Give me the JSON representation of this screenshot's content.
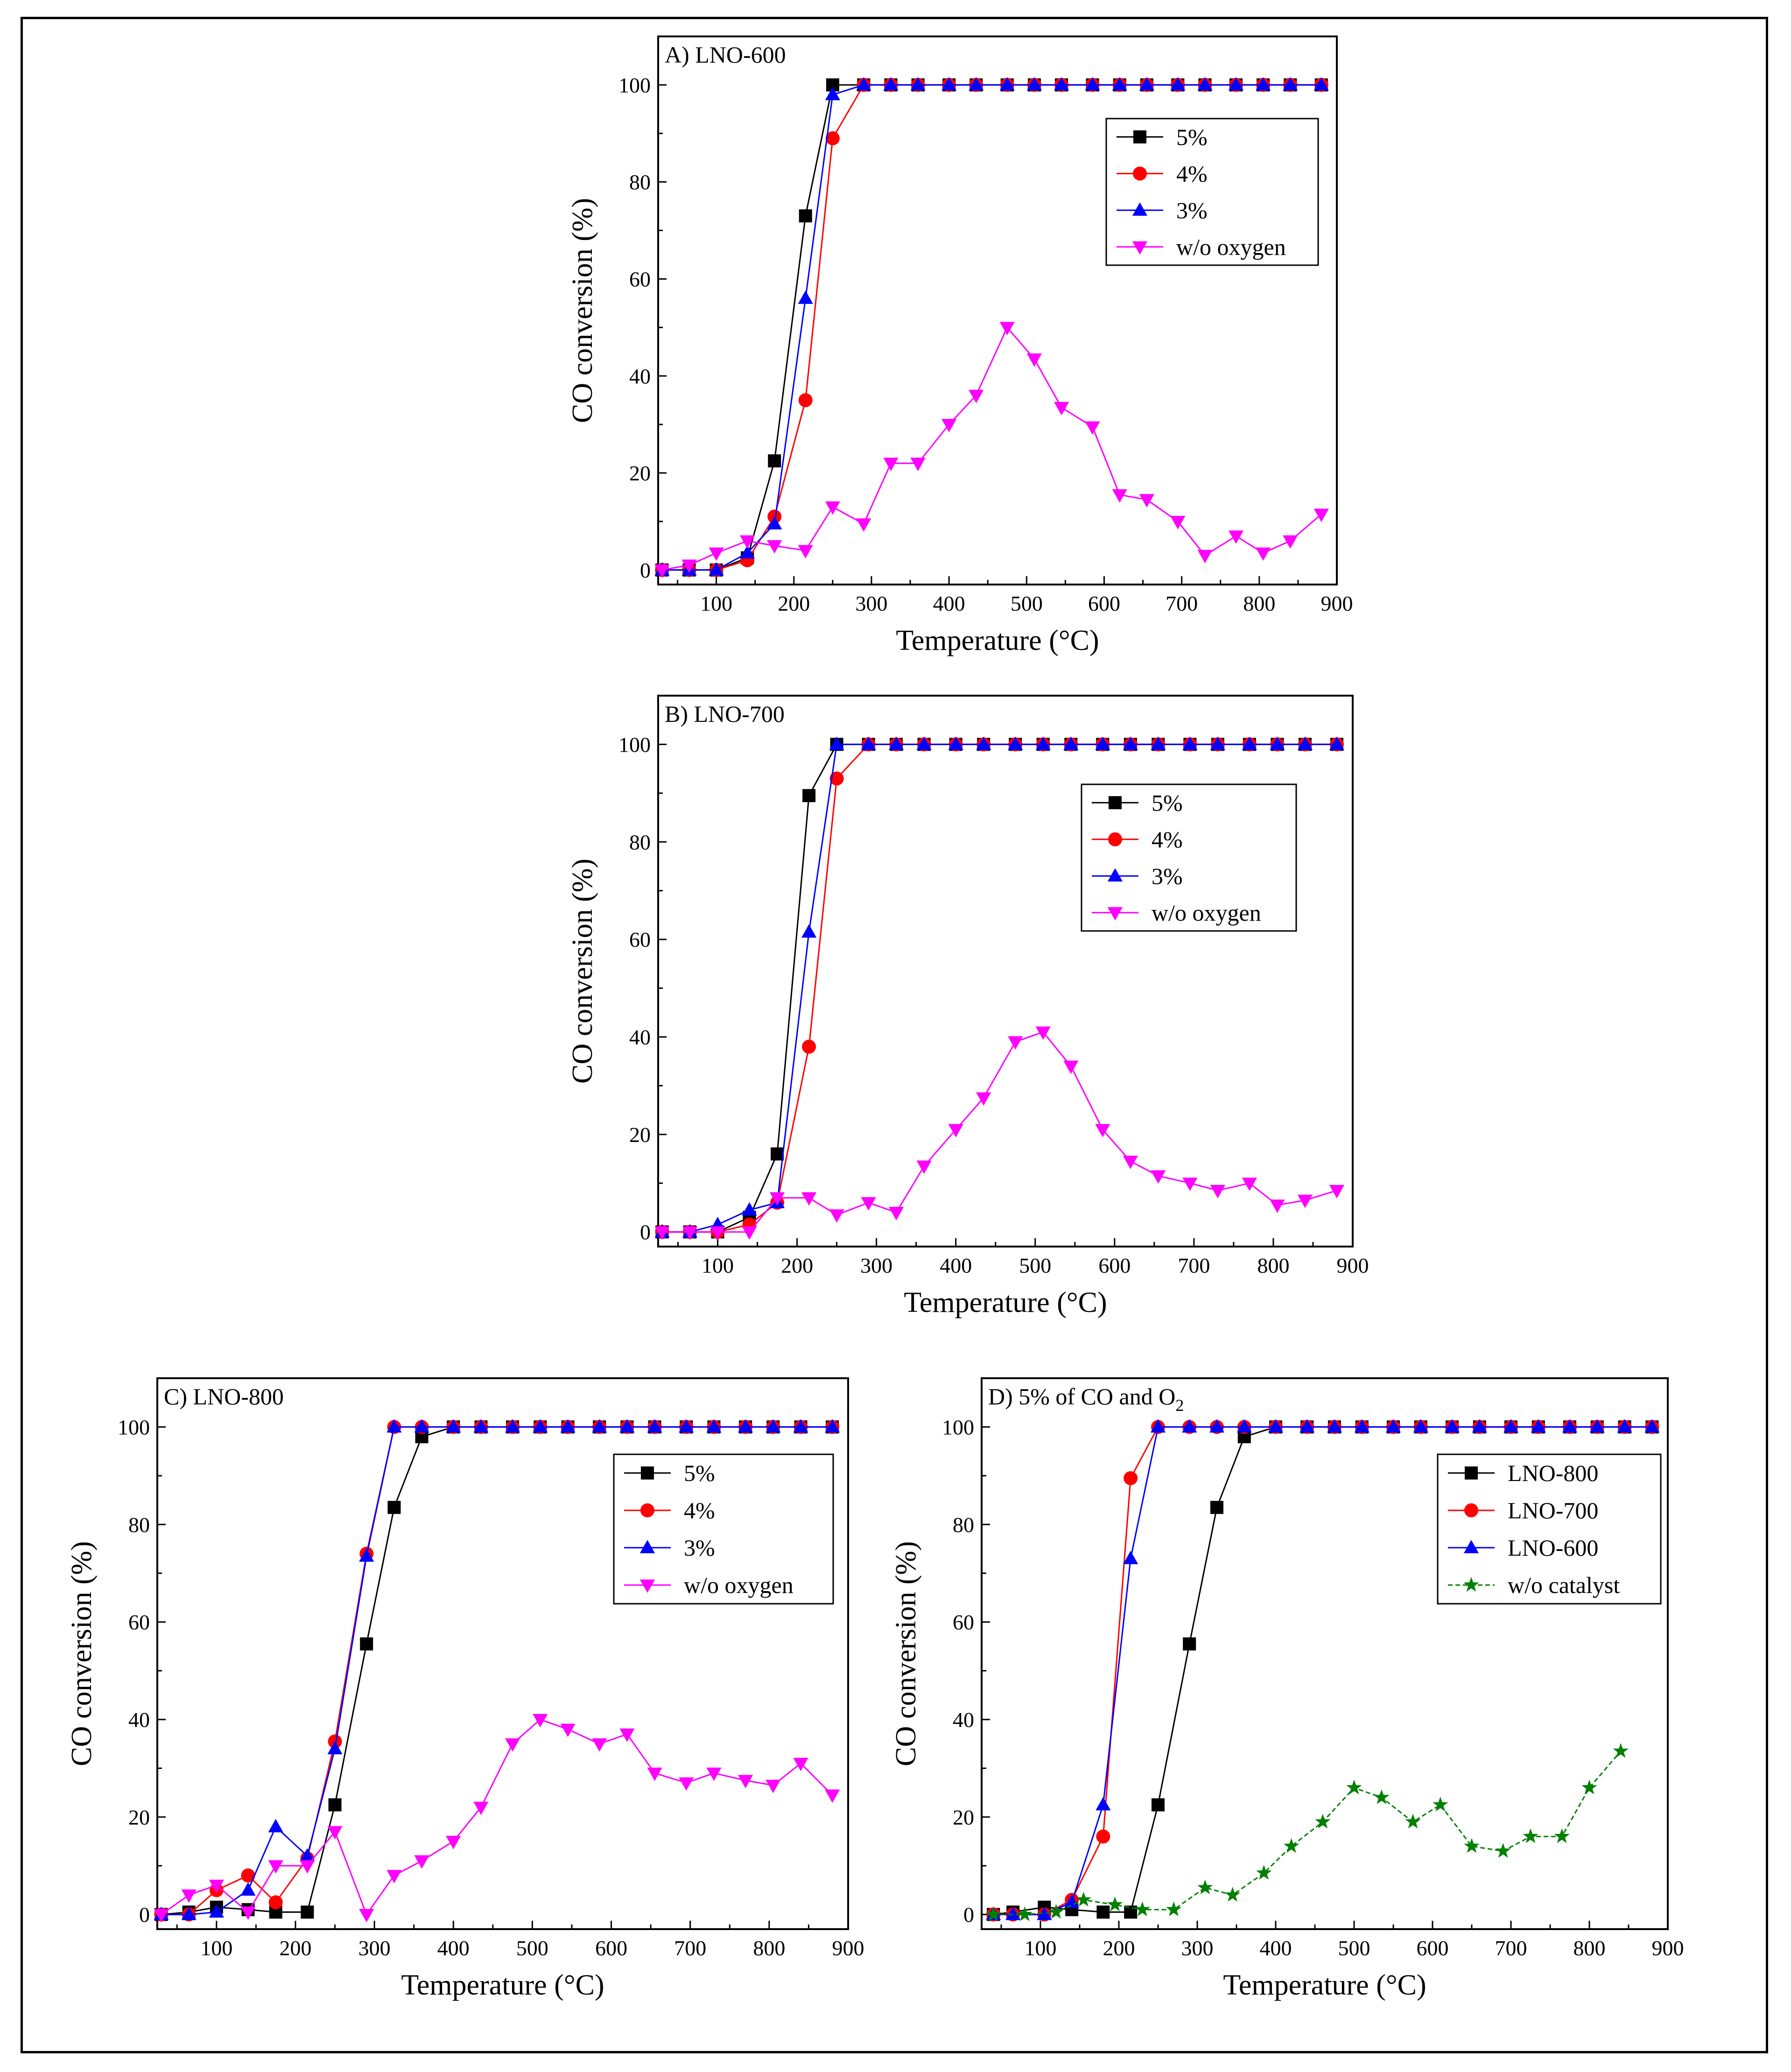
{
  "figure": {
    "description_visible": ""
  },
  "chart_data": [
    {
      "panel": "A",
      "type": "line",
      "title": "A) LNO-600",
      "xlabel": "Temperature (°C)",
      "ylabel": "CO conversion (%)",
      "xlim": [
        25,
        900
      ],
      "ylim": [
        -3,
        110
      ],
      "xticks": [
        100,
        200,
        300,
        400,
        500,
        600,
        700,
        800,
        900
      ],
      "yticks": [
        0,
        20,
        40,
        60,
        80,
        100
      ],
      "legend_position": "top-right",
      "series": [
        {
          "name": "5%",
          "color": "#000000",
          "marker": "square",
          "x": [
            30,
            65,
            100,
            140,
            175,
            215,
            250,
            290,
            325,
            360,
            400,
            435,
            475,
            510,
            545,
            585,
            620,
            655,
            695,
            730,
            770,
            805,
            840,
            880
          ],
          "y": [
            0,
            0,
            0,
            2.5,
            22.5,
            73,
            100,
            100,
            100,
            100,
            100,
            100,
            100,
            100,
            100,
            100,
            100,
            100,
            100,
            100,
            100,
            100,
            100,
            100
          ]
        },
        {
          "name": "4%",
          "color": "#ff0000",
          "marker": "circle",
          "x": [
            30,
            65,
            100,
            140,
            175,
            215,
            250,
            290,
            325,
            360,
            400,
            435,
            475,
            510,
            545,
            585,
            620,
            655,
            695,
            730,
            770,
            805,
            840,
            880
          ],
          "y": [
            0,
            0,
            0,
            2,
            11,
            35,
            89,
            100,
            100,
            100,
            100,
            100,
            100,
            100,
            100,
            100,
            100,
            100,
            100,
            100,
            100,
            100,
            100,
            100
          ]
        },
        {
          "name": "3%",
          "color": "#0000ff",
          "marker": "triangle-up",
          "x": [
            30,
            65,
            100,
            140,
            175,
            215,
            250,
            290,
            325,
            360,
            400,
            435,
            475,
            510,
            545,
            585,
            620,
            655,
            695,
            730,
            770,
            805,
            840,
            880
          ],
          "y": [
            0,
            0,
            0,
            3.5,
            9.5,
            56,
            98,
            100,
            100,
            100,
            100,
            100,
            100,
            100,
            100,
            100,
            100,
            100,
            100,
            100,
            100,
            100,
            100,
            100
          ]
        },
        {
          "name": "w/o oxygen",
          "color": "#ff00ff",
          "marker": "triangle-down",
          "x": [
            30,
            65,
            100,
            140,
            175,
            215,
            250,
            290,
            325,
            360,
            400,
            435,
            475,
            510,
            545,
            585,
            620,
            655,
            695,
            730,
            770,
            805,
            840,
            880
          ],
          "y": [
            0,
            1,
            3.5,
            6,
            5,
            4,
            13,
            9.5,
            22,
            22,
            30,
            36,
            50,
            43.5,
            33.5,
            29.5,
            15.5,
            14.5,
            10,
            3,
            7,
            3.5,
            6,
            11.5
          ]
        }
      ]
    },
    {
      "panel": "B",
      "type": "line",
      "title": "B) LNO-700",
      "xlabel": "Temperature (°C)",
      "ylabel": "CO conversion (%)",
      "xlim": [
        25,
        900
      ],
      "ylim": [
        -3,
        110
      ],
      "xticks": [
        100,
        200,
        300,
        400,
        500,
        600,
        700,
        800,
        900
      ],
      "yticks": [
        0,
        20,
        40,
        60,
        80,
        100
      ],
      "legend_position": "top-right",
      "series": [
        {
          "name": "5%",
          "color": "#000000",
          "marker": "square",
          "x": [
            30,
            65,
            100,
            140,
            175,
            215,
            250,
            290,
            325,
            360,
            400,
            435,
            475,
            510,
            545,
            585,
            620,
            655,
            695,
            730,
            770,
            805,
            840,
            880
          ],
          "y": [
            0,
            0,
            0,
            3,
            16,
            89.5,
            100,
            100,
            100,
            100,
            100,
            100,
            100,
            100,
            100,
            100,
            100,
            100,
            100,
            100,
            100,
            100,
            100,
            100
          ]
        },
        {
          "name": "4%",
          "color": "#ff0000",
          "marker": "circle",
          "x": [
            30,
            65,
            100,
            140,
            175,
            215,
            250,
            290,
            325,
            360,
            400,
            435,
            475,
            510,
            545,
            585,
            620,
            655,
            695,
            730,
            770,
            805,
            840,
            880
          ],
          "y": [
            0,
            0,
            0,
            1.5,
            6,
            38,
            93,
            100,
            100,
            100,
            100,
            100,
            100,
            100,
            100,
            100,
            100,
            100,
            100,
            100,
            100,
            100,
            100,
            100
          ]
        },
        {
          "name": "3%",
          "color": "#0000ff",
          "marker": "triangle-up",
          "x": [
            30,
            65,
            100,
            140,
            175,
            215,
            250,
            290,
            325,
            360,
            400,
            435,
            475,
            510,
            545,
            585,
            620,
            655,
            695,
            730,
            770,
            805,
            840,
            880
          ],
          "y": [
            0,
            0,
            1.5,
            4.5,
            6,
            61.5,
            100,
            100,
            100,
            100,
            100,
            100,
            100,
            100,
            100,
            100,
            100,
            100,
            100,
            100,
            100,
            100,
            100,
            100
          ]
        },
        {
          "name": "w/o oxygen",
          "color": "#ff00ff",
          "marker": "triangle-down",
          "x": [
            30,
            65,
            100,
            140,
            175,
            215,
            250,
            290,
            325,
            360,
            400,
            435,
            475,
            510,
            545,
            585,
            620,
            655,
            695,
            730,
            770,
            805,
            840,
            880
          ],
          "y": [
            0,
            0,
            0,
            0,
            7,
            7,
            3.5,
            6,
            4,
            13.5,
            21,
            27.5,
            39,
            41,
            34,
            21,
            14.5,
            11.5,
            10,
            8.5,
            10,
            5.5,
            6.5,
            8.5
          ]
        }
      ]
    },
    {
      "panel": "C",
      "type": "line",
      "title": "C) LNO-800",
      "xlabel": "Temperature (°C)",
      "ylabel": "CO conversion (%)",
      "xlim": [
        25,
        900
      ],
      "ylim": [
        -3,
        110
      ],
      "xticks": [
        100,
        200,
        300,
        400,
        500,
        600,
        700,
        800,
        900
      ],
      "yticks": [
        0,
        20,
        40,
        60,
        80,
        100
      ],
      "legend_position": "top-right",
      "series": [
        {
          "name": "5%",
          "color": "#000000",
          "marker": "square",
          "x": [
            30,
            65,
            100,
            140,
            175,
            215,
            250,
            290,
            325,
            360,
            400,
            435,
            475,
            510,
            545,
            585,
            620,
            655,
            695,
            730,
            770,
            805,
            840,
            880
          ],
          "y": [
            0,
            0.5,
            1.5,
            1,
            0.5,
            0.5,
            22.5,
            55.5,
            83.5,
            98,
            100,
            100,
            100,
            100,
            100,
            100,
            100,
            100,
            100,
            100,
            100,
            100,
            100,
            100
          ]
        },
        {
          "name": "4%",
          "color": "#ff0000",
          "marker": "circle",
          "x": [
            30,
            65,
            100,
            140,
            175,
            215,
            250,
            290,
            325,
            360,
            400,
            435,
            475,
            510,
            545,
            585,
            620,
            655,
            695,
            730,
            770,
            805,
            840,
            880
          ],
          "y": [
            0,
            0,
            5,
            8,
            2.5,
            11.5,
            35.5,
            74,
            100,
            100,
            100,
            100,
            100,
            100,
            100,
            100,
            100,
            100,
            100,
            100,
            100,
            100,
            100,
            100
          ]
        },
        {
          "name": "3%",
          "color": "#0000ff",
          "marker": "triangle-up",
          "x": [
            30,
            65,
            100,
            140,
            175,
            215,
            250,
            290,
            325,
            360,
            400,
            435,
            475,
            510,
            545,
            585,
            620,
            655,
            695,
            730,
            770,
            805,
            840,
            880
          ],
          "y": [
            0,
            0,
            0.5,
            5,
            18,
            12,
            34,
            73.5,
            100,
            100,
            100,
            100,
            100,
            100,
            100,
            100,
            100,
            100,
            100,
            100,
            100,
            100,
            100,
            100
          ]
        },
        {
          "name": "w/o oxygen",
          "color": "#ff00ff",
          "marker": "triangle-down",
          "x": [
            30,
            65,
            100,
            140,
            175,
            215,
            250,
            290,
            325,
            360,
            400,
            435,
            475,
            510,
            545,
            585,
            620,
            655,
            695,
            730,
            770,
            805,
            840,
            880
          ],
          "y": [
            0,
            4,
            6,
            0.5,
            10,
            10,
            17,
            0,
            8,
            11,
            15,
            22,
            35,
            40,
            38,
            35,
            37,
            29,
            27,
            29,
            27.5,
            26.5,
            31,
            24.5
          ]
        }
      ]
    },
    {
      "panel": "D",
      "type": "line",
      "title": "D) 5% of CO and O",
      "title_subscript": "2",
      "xlabel": "Temperature (°C)",
      "ylabel": "CO conversion (%)",
      "xlim": [
        25,
        900
      ],
      "ylim": [
        -3,
        110
      ],
      "xticks": [
        100,
        200,
        300,
        400,
        500,
        600,
        700,
        800,
        900
      ],
      "yticks": [
        0,
        20,
        40,
        60,
        80,
        100
      ],
      "legend_position": "top-right",
      "series": [
        {
          "name": "LNO-800",
          "color": "#000000",
          "marker": "square",
          "x": [
            40,
            65,
            105,
            140,
            180,
            215,
            250,
            290,
            325,
            360,
            400,
            440,
            475,
            510,
            550,
            585,
            625,
            660,
            700,
            735,
            775,
            810,
            845,
            880
          ],
          "y": [
            0,
            0.5,
            1.5,
            1,
            0.5,
            0.5,
            22.5,
            55.5,
            83.5,
            98,
            100,
            100,
            100,
            100,
            100,
            100,
            100,
            100,
            100,
            100,
            100,
            100,
            100,
            100
          ]
        },
        {
          "name": "LNO-700",
          "color": "#ff0000",
          "marker": "circle",
          "x": [
            40,
            65,
            105,
            140,
            180,
            215,
            250,
            290,
            325,
            360,
            400,
            440,
            475,
            510,
            550,
            585,
            625,
            660,
            700,
            735,
            775,
            810,
            845,
            880
          ],
          "y": [
            0,
            0,
            0,
            3,
            16,
            89.5,
            100,
            100,
            100,
            100,
            100,
            100,
            100,
            100,
            100,
            100,
            100,
            100,
            100,
            100,
            100,
            100,
            100,
            100
          ]
        },
        {
          "name": "LNO-600",
          "color": "#0000ff",
          "marker": "triangle-up",
          "x": [
            40,
            65,
            105,
            140,
            180,
            215,
            250,
            290,
            325,
            360,
            400,
            440,
            475,
            510,
            550,
            585,
            625,
            660,
            700,
            735,
            775,
            810,
            845,
            880
          ],
          "y": [
            0,
            0,
            0,
            2.5,
            22.5,
            73,
            100,
            100,
            100,
            100,
            100,
            100,
            100,
            100,
            100,
            100,
            100,
            100,
            100,
            100,
            100,
            100,
            100,
            100
          ]
        },
        {
          "name": "w/o catalyst",
          "color": "#008000",
          "marker": "star",
          "dashed": true,
          "x": [
            40,
            80,
            120,
            155,
            195,
            230,
            270,
            310,
            345,
            385,
            420,
            460,
            500,
            535,
            575,
            610,
            650,
            690,
            725,
            765,
            800,
            840
          ],
          "y": [
            0,
            0,
            0.5,
            3,
            2,
            1,
            1,
            5.5,
            4,
            8.5,
            14,
            19,
            26,
            24,
            19,
            22.5,
            14,
            13,
            16,
            16,
            26,
            33.5
          ]
        }
      ]
    }
  ]
}
